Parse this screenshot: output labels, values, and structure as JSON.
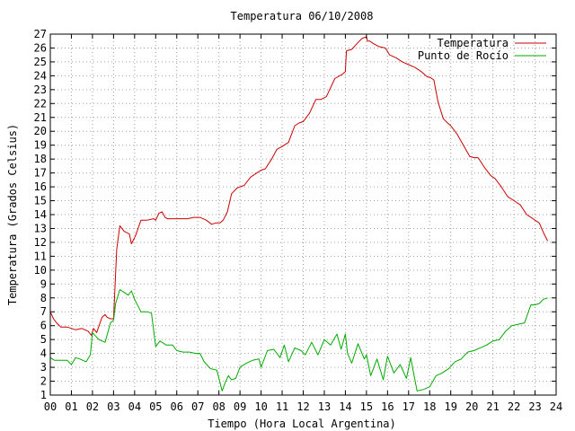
{
  "chart_data": {
    "type": "line",
    "title": "Temperatura 06/10/2008",
    "xlabel": "Tiempo (Hora Local Argentina)",
    "ylabel": "Temperatura (Grados Celsius)",
    "xlim": [
      0,
      24
    ],
    "ylim": [
      1,
      27
    ],
    "grid": true,
    "legend_position": "top-right",
    "x_ticks": [
      "00",
      "01",
      "02",
      "03",
      "04",
      "05",
      "06",
      "07",
      "08",
      "09",
      "10",
      "11",
      "12",
      "13",
      "14",
      "15",
      "16",
      "17",
      "18",
      "19",
      "20",
      "21",
      "22",
      "23",
      "24"
    ],
    "y_ticks": [
      "1",
      "2",
      "3",
      "4",
      "5",
      "6",
      "7",
      "8",
      "9",
      "10",
      "11",
      "12",
      "13",
      "14",
      "15",
      "16",
      "17",
      "18",
      "19",
      "20",
      "21",
      "22",
      "23",
      "24",
      "25",
      "26",
      "27"
    ],
    "series": [
      {
        "name": "Temperatura",
        "color": "#cc0000",
        "x": [
          0.0,
          0.15,
          0.3,
          0.5,
          0.8,
          1.2,
          1.5,
          1.8,
          1.95,
          2.05,
          2.2,
          2.45,
          2.6,
          2.7,
          2.85,
          3.0,
          3.15,
          3.3,
          3.5,
          3.75,
          3.85,
          4.05,
          4.3,
          4.6,
          4.9,
          5.0,
          5.15,
          5.3,
          5.45,
          5.55,
          6.0,
          6.5,
          6.8,
          7.1,
          7.4,
          7.65,
          7.85,
          8.05,
          8.2,
          8.4,
          8.6,
          8.85,
          9.0,
          9.2,
          9.5,
          9.8,
          10.0,
          10.2,
          10.5,
          10.75,
          11.0,
          11.3,
          11.6,
          11.8,
          12.0,
          12.3,
          12.6,
          12.85,
          13.1,
          13.5,
          13.85,
          14.0,
          14.05,
          14.3,
          14.6,
          14.8,
          15.0,
          15.05,
          15.15,
          15.35,
          15.6,
          15.9,
          16.1,
          16.4,
          16.7,
          17.0,
          17.3,
          17.6,
          17.9,
          18.0,
          18.2,
          18.4,
          18.65,
          18.85,
          19.0,
          19.3,
          19.6,
          19.9,
          20.1,
          20.3,
          20.6,
          20.9,
          21.1,
          21.4,
          21.7,
          22.0,
          22.3,
          22.6,
          22.9,
          23.0,
          23.2,
          23.4,
          23.6
        ],
        "y": [
          7.0,
          6.5,
          6.2,
          5.9,
          5.9,
          5.7,
          5.8,
          5.6,
          5.3,
          5.8,
          5.5,
          6.6,
          6.8,
          6.6,
          6.5,
          6.5,
          11.5,
          13.2,
          12.8,
          12.6,
          11.9,
          12.5,
          13.6,
          13.6,
          13.7,
          13.6,
          14.1,
          14.2,
          13.8,
          13.7,
          13.7,
          13.7,
          13.8,
          13.8,
          13.6,
          13.3,
          13.4,
          13.4,
          13.6,
          14.2,
          15.5,
          15.9,
          16.0,
          16.1,
          16.7,
          17.0,
          17.2,
          17.3,
          18.0,
          18.7,
          18.9,
          19.2,
          20.4,
          20.6,
          20.7,
          21.3,
          22.3,
          22.3,
          22.5,
          23.8,
          24.1,
          24.3,
          25.8,
          25.9,
          26.4,
          26.7,
          26.8,
          26.5,
          26.5,
          26.3,
          26.1,
          26.0,
          25.5,
          25.3,
          25.0,
          24.8,
          24.6,
          24.3,
          23.9,
          23.9,
          23.7,
          22.1,
          20.9,
          20.6,
          20.4,
          19.8,
          19.0,
          18.2,
          18.1,
          18.1,
          17.4,
          16.8,
          16.6,
          16.0,
          15.3,
          15.0,
          14.7,
          14.0,
          13.7,
          13.6,
          13.4,
          12.7,
          12.1
        ]
      },
      {
        "name": "Punto de Rocío",
        "color": "#00aa00",
        "x": [
          0.0,
          0.2,
          0.5,
          0.8,
          1.0,
          1.2,
          1.4,
          1.7,
          1.9,
          2.0,
          2.3,
          2.6,
          2.85,
          3.0,
          3.1,
          3.3,
          3.5,
          3.7,
          3.85,
          4.0,
          4.3,
          4.6,
          4.8,
          5.0,
          5.2,
          5.5,
          5.8,
          6.0,
          6.3,
          6.6,
          6.9,
          7.1,
          7.3,
          7.6,
          7.9,
          8.0,
          8.15,
          8.3,
          8.45,
          8.6,
          8.8,
          9.0,
          9.3,
          9.6,
          9.9,
          10.0,
          10.3,
          10.6,
          10.9,
          11.1,
          11.3,
          11.6,
          11.9,
          12.1,
          12.4,
          12.7,
          13.0,
          13.3,
          13.6,
          13.8,
          14.0,
          14.1,
          14.3,
          14.6,
          14.9,
          15.0,
          15.2,
          15.5,
          15.8,
          16.0,
          16.3,
          16.6,
          16.9,
          17.1,
          17.4,
          17.7,
          18.0,
          18.3,
          18.6,
          18.9,
          19.2,
          19.5,
          19.8,
          20.1,
          20.4,
          20.7,
          21.0,
          21.3,
          21.6,
          21.9,
          22.2,
          22.5,
          22.8,
          23.0,
          23.2,
          23.4,
          23.6
        ],
        "y": [
          3.7,
          3.5,
          3.5,
          3.5,
          3.2,
          3.7,
          3.6,
          3.4,
          3.9,
          5.5,
          5.0,
          4.8,
          6.2,
          6.4,
          7.6,
          8.6,
          8.4,
          8.2,
          8.5,
          7.9,
          7.0,
          7.0,
          6.9,
          4.5,
          4.9,
          4.6,
          4.6,
          4.2,
          4.1,
          4.1,
          4.0,
          4.0,
          3.4,
          2.9,
          2.8,
          2.2,
          1.3,
          1.9,
          2.4,
          2.1,
          2.2,
          3.0,
          3.3,
          3.5,
          3.6,
          3.0,
          4.2,
          4.3,
          3.7,
          4.6,
          3.4,
          4.4,
          4.2,
          3.9,
          4.8,
          3.9,
          5.0,
          4.6,
          5.4,
          4.3,
          5.4,
          4.0,
          3.3,
          4.7,
          3.6,
          3.9,
          2.4,
          3.6,
          2.1,
          3.8,
          2.6,
          3.2,
          2.2,
          3.7,
          1.3,
          1.4,
          1.6,
          2.4,
          2.6,
          2.9,
          3.4,
          3.6,
          4.1,
          4.2,
          4.4,
          4.6,
          4.9,
          5.0,
          5.6,
          6.0,
          6.1,
          6.2,
          7.5,
          7.5,
          7.6,
          7.9,
          8.0
        ]
      }
    ]
  }
}
